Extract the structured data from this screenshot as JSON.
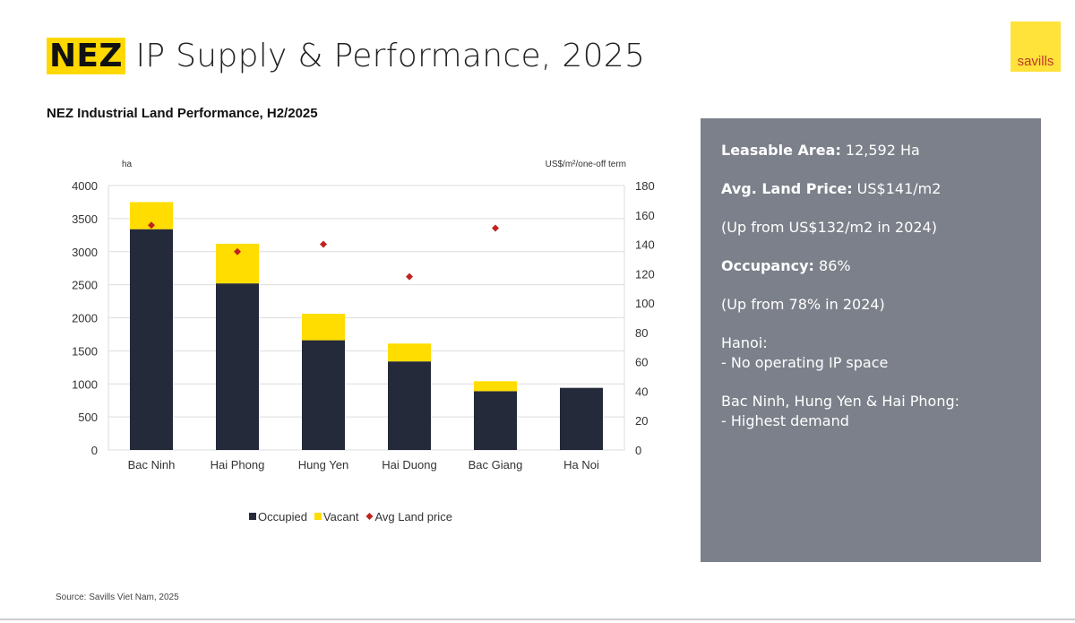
{
  "header": {
    "highlight": "NEZ",
    "title": " IP Supply & Performance, 2025",
    "logo": "savills"
  },
  "chart_data": {
    "type": "bar",
    "title": "NEZ Industrial Land Performance, H2/2025",
    "ylabel": "ha",
    "y2label": "US$/m²/one-off term",
    "ylim": [
      0,
      4000
    ],
    "y2lim": [
      0,
      180
    ],
    "yticks": [
      0,
      500,
      1000,
      1500,
      2000,
      2500,
      3000,
      3500,
      4000
    ],
    "y2ticks": [
      0,
      20,
      40,
      60,
      80,
      100,
      120,
      140,
      160,
      180
    ],
    "categories": [
      "Bac Ninh",
      "Hai Phong",
      "Hung Yen",
      "Hai Duong",
      "Bac Giang",
      "Ha Noi"
    ],
    "series": [
      {
        "name": "Occupied",
        "type": "bar",
        "stack": true,
        "color": "#252a3a",
        "values": [
          3340,
          2520,
          1660,
          1340,
          890,
          940
        ]
      },
      {
        "name": "Vacant",
        "type": "bar",
        "stack": true,
        "color": "#ffdd00",
        "values": [
          410,
          600,
          400,
          270,
          150,
          0
        ]
      },
      {
        "name": "Avg Land price",
        "type": "scatter",
        "axis": "right",
        "color": "#c0231e",
        "values": [
          153,
          135,
          140,
          118,
          151,
          null
        ]
      }
    ],
    "legend": "bottom",
    "grid": true
  },
  "panel": {
    "lines": [
      {
        "label": "Leasable Area:",
        "value": " 12,592 Ha"
      },
      {
        "label": "Avg. Land Price:",
        "value": " US$141/m2"
      },
      {
        "label": "",
        "value": "(Up from US$132/m2 in 2024)"
      },
      {
        "label": "Occupancy:",
        "value": " 86%"
      },
      {
        "label": "",
        "value": "(Up from 78% in 2024)"
      },
      {
        "label": "",
        "value": "Hanoi:"
      },
      {
        "label": "",
        "value": "- No operating IP space"
      },
      {
        "label": "",
        "value": "Bac Ninh, Hung Yen & Hai Phong:"
      },
      {
        "label": "",
        "value": "-  Highest demand"
      }
    ]
  },
  "source": "Source: Savills Viet Nam, 2025"
}
